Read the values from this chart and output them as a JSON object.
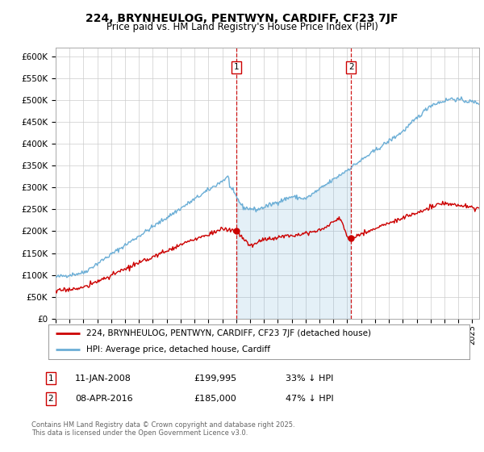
{
  "title": "224, BRYNHEULOG, PENTWYN, CARDIFF, CF23 7JF",
  "subtitle": "Price paid vs. HM Land Registry's House Price Index (HPI)",
  "ylabel_ticks": [
    "£0",
    "£50K",
    "£100K",
    "£150K",
    "£200K",
    "£250K",
    "£300K",
    "£350K",
    "£400K",
    "£450K",
    "£500K",
    "£550K",
    "£600K"
  ],
  "ytick_values": [
    0,
    50000,
    100000,
    150000,
    200000,
    250000,
    300000,
    350000,
    400000,
    450000,
    500000,
    550000,
    600000
  ],
  "hpi_color": "#6baed6",
  "sale_color": "#cc0000",
  "background_color": "#ffffff",
  "plot_bg_color": "#ffffff",
  "grid_color": "#cccccc",
  "sale1_date": "11-JAN-2008",
  "sale1_price": 199995,
  "sale1_label": "1",
  "sale1_hpi_pct": "33% ↓ HPI",
  "sale2_date": "08-APR-2016",
  "sale2_price": 185000,
  "sale2_label": "2",
  "sale2_hpi_pct": "47% ↓ HPI",
  "legend_label_red": "224, BRYNHEULOG, PENTWYN, CARDIFF, CF23 7JF (detached house)",
  "legend_label_blue": "HPI: Average price, detached house, Cardiff",
  "footnote": "Contains HM Land Registry data © Crown copyright and database right 2025.\nThis data is licensed under the Open Government Licence v3.0.",
  "xmin": 1995.0,
  "xmax": 2025.5,
  "ymin": 0,
  "ymax": 620000,
  "sale1_x": 2008.03,
  "sale2_x": 2016.27
}
